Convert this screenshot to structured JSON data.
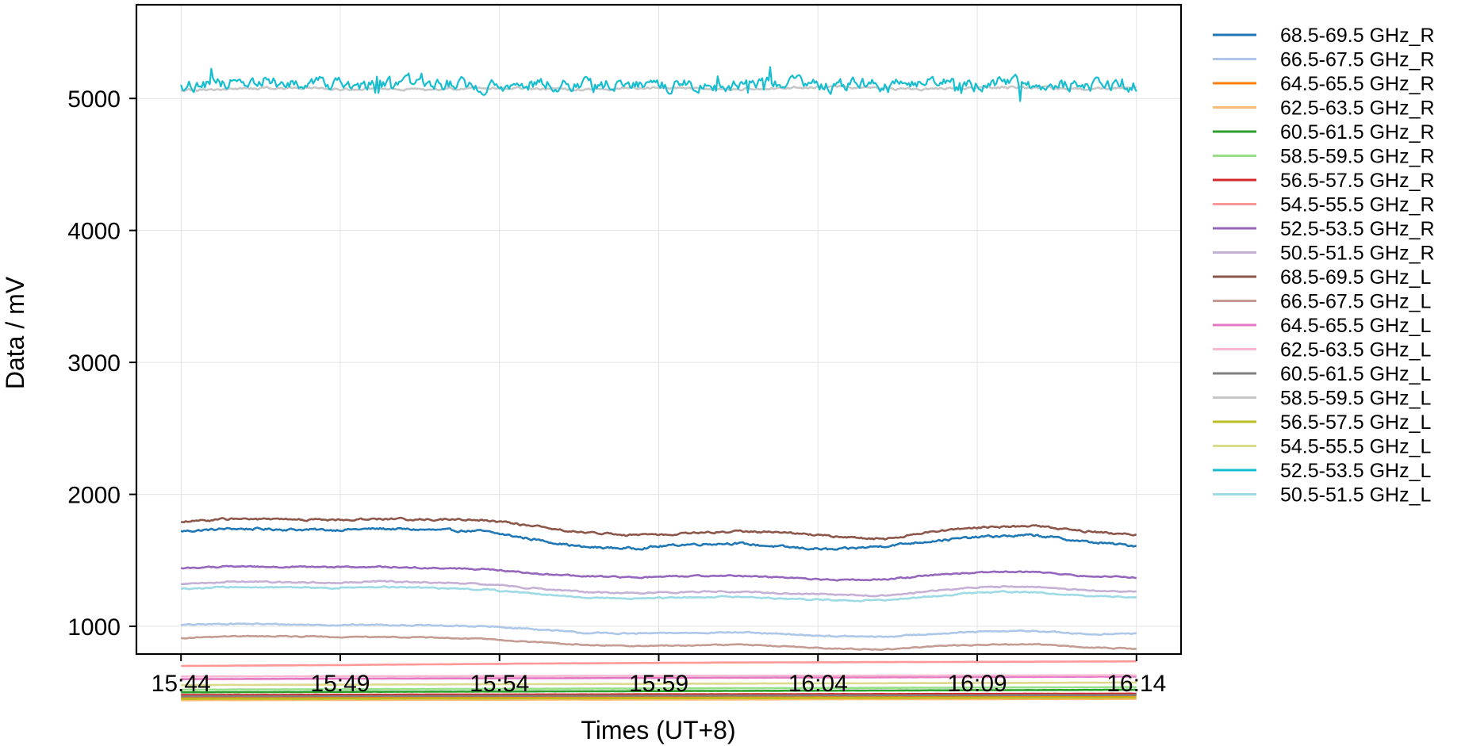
{
  "chart_data": {
    "type": "line",
    "xlabel": "Times (UT+8)",
    "ylabel": "Data / mV",
    "x_ticks": [
      "15:44",
      "15:49",
      "15:54",
      "15:59",
      "16:04",
      "16:09",
      "16:14"
    ],
    "x_range_minutes": [
      -1.4,
      31.4
    ],
    "y_ticks": [
      1000,
      2000,
      3000,
      4000,
      5000
    ],
    "ylim": [
      790,
      5710
    ],
    "grid": true,
    "legend_position": "outside-right",
    "series": [
      {
        "name": "68.5-69.5 GHz_R",
        "color": "#1f77b4",
        "levels": [
          1720,
          1740,
          1735,
          1730,
          1740,
          1730,
          1720,
          1660,
          1600,
          1590,
          1620,
          1630,
          1600,
          1580,
          1610,
          1650,
          1680,
          1690,
          1640,
          1610
        ],
        "noise": 14
      },
      {
        "name": "66.5-67.5 GHz_R",
        "color": "#aec7e8",
        "levels": [
          1010,
          1020,
          1015,
          1010,
          1012,
          1005,
          1000,
          980,
          950,
          945,
          950,
          955,
          940,
          925,
          920,
          945,
          960,
          965,
          940,
          945
        ],
        "noise": 8
      },
      {
        "name": "64.5-65.5 GHz_R",
        "color": "#ff7f0e",
        "levels": [
          460,
          462,
          463,
          464,
          465,
          466,
          467,
          467,
          468,
          468,
          469,
          470,
          470,
          471,
          471,
          472,
          472,
          473,
          473,
          474
        ],
        "noise": 1
      },
      {
        "name": "62.5-63.5 GHz_R",
        "color": "#ffbb78",
        "levels": [
          440,
          441,
          441,
          442,
          442,
          443,
          443,
          444,
          444,
          445,
          445,
          446,
          446,
          447,
          447,
          448,
          448,
          449,
          449,
          450
        ],
        "noise": 1
      },
      {
        "name": "60.5-61.5 GHz_R",
        "color": "#2ca02c",
        "levels": [
          500,
          501,
          502,
          503,
          504,
          505,
          506,
          507,
          508,
          509,
          510,
          511,
          512,
          513,
          514,
          515,
          516,
          517,
          518,
          519
        ],
        "noise": 1
      },
      {
        "name": "58.5-59.5 GHz_R",
        "color": "#98df8a",
        "levels": [
          520,
          521,
          522,
          523,
          524,
          525,
          526,
          527,
          528,
          529,
          530,
          531,
          532,
          533,
          534,
          535,
          536,
          537,
          538,
          539
        ],
        "noise": 1
      },
      {
        "name": "56.5-57.5 GHz_R",
        "color": "#d62728",
        "levels": [
          480,
          481,
          481,
          482,
          482,
          483,
          483,
          484,
          484,
          485,
          485,
          486,
          486,
          487,
          487,
          488,
          488,
          489,
          489,
          490
        ],
        "noise": 1
      },
      {
        "name": "54.5-55.5 GHz_R",
        "color": "#ff9896",
        "levels": [
          700,
          702,
          704,
          706,
          709,
          712,
          715,
          718,
          720,
          722,
          724,
          726,
          727,
          728,
          729,
          730,
          731,
          732,
          733,
          735
        ],
        "noise": 1
      },
      {
        "name": "52.5-53.5 GHz_R",
        "color": "#9467bd",
        "levels": [
          1440,
          1455,
          1450,
          1448,
          1450,
          1440,
          1435,
          1400,
          1380,
          1370,
          1380,
          1385,
          1370,
          1350,
          1355,
          1390,
          1410,
          1415,
          1380,
          1370
        ],
        "noise": 8
      },
      {
        "name": "50.5-51.5 GHz_R",
        "color": "#c5b0d5",
        "levels": [
          1320,
          1340,
          1335,
          1330,
          1340,
          1330,
          1320,
          1290,
          1260,
          1250,
          1260,
          1265,
          1250,
          1240,
          1230,
          1270,
          1300,
          1300,
          1270,
          1260
        ],
        "noise": 8
      },
      {
        "name": "68.5-69.5 GHz_L",
        "color": "#8c564b",
        "levels": [
          1790,
          1815,
          1810,
          1805,
          1815,
          1810,
          1805,
          1760,
          1710,
          1690,
          1700,
          1720,
          1710,
          1680,
          1660,
          1720,
          1750,
          1760,
          1720,
          1690
        ],
        "noise": 12
      },
      {
        "name": "66.5-67.5 GHz_L",
        "color": "#c49c94",
        "levels": [
          910,
          925,
          925,
          920,
          920,
          915,
          905,
          880,
          860,
          850,
          855,
          860,
          850,
          830,
          825,
          850,
          860,
          865,
          840,
          830
        ],
        "noise": 6
      },
      {
        "name": "64.5-65.5 GHz_L",
        "color": "#e377c2",
        "levels": [
          600,
          601,
          602,
          603,
          604,
          605,
          606,
          607,
          608,
          609,
          610,
          611,
          612,
          613,
          614,
          615,
          616,
          617,
          618,
          619
        ],
        "noise": 1
      },
      {
        "name": "62.5-63.5 GHz_L",
        "color": "#f7b6d2",
        "levels": [
          620,
          620,
          621,
          621,
          622,
          622,
          623,
          623,
          624,
          624,
          625,
          625,
          626,
          626,
          627,
          627,
          628,
          628,
          629,
          629
        ],
        "noise": 1
      },
      {
        "name": "60.5-61.5 GHz_L",
        "color": "#7f7f7f",
        "levels": [
          470,
          471,
          471,
          472,
          472,
          473,
          473,
          474,
          474,
          475,
          475,
          476,
          476,
          477,
          477,
          478,
          478,
          479,
          479,
          480
        ],
        "noise": 1
      },
      {
        "name": "58.5-59.5 GHz_L",
        "color": "#c7c7c7",
        "levels": [
          5060,
          5070,
          5080,
          5070,
          5075,
          5065,
          5080,
          5075,
          5070,
          5080,
          5075,
          5070,
          5080,
          5090,
          5075,
          5070,
          5085,
          5080,
          5070,
          5080
        ],
        "noise": 15
      },
      {
        "name": "56.5-57.5 GHz_L",
        "color": "#bcbd22",
        "levels": [
          450,
          451,
          451,
          452,
          452,
          453,
          453,
          454,
          454,
          455,
          455,
          456,
          456,
          457,
          457,
          458,
          458,
          459,
          459,
          460
        ],
        "noise": 1
      },
      {
        "name": "54.5-55.5 GHz_L",
        "color": "#dbdb8d",
        "levels": [
          555,
          556,
          557,
          558,
          559,
          560,
          561,
          562,
          563,
          564,
          565,
          566,
          567,
          568,
          569,
          570,
          571,
          572,
          573,
          574
        ],
        "noise": 1
      },
      {
        "name": "52.5-53.5 GHz_L",
        "color": "#17becf",
        "levels": [
          5100,
          5120,
          5110,
          5100,
          5110,
          5115,
          5105,
          5110,
          5100,
          5095,
          5100,
          5110,
          5105,
          5095,
          5100,
          5110,
          5120,
          5110,
          5100,
          5105
        ],
        "noise": 80
      },
      {
        "name": "50.5-51.5 GHz_L",
        "color": "#9edae5",
        "levels": [
          1280,
          1300,
          1295,
          1290,
          1300,
          1290,
          1280,
          1250,
          1220,
          1210,
          1220,
          1225,
          1210,
          1200,
          1195,
          1230,
          1260,
          1260,
          1230,
          1220
        ],
        "noise": 8
      }
    ]
  }
}
